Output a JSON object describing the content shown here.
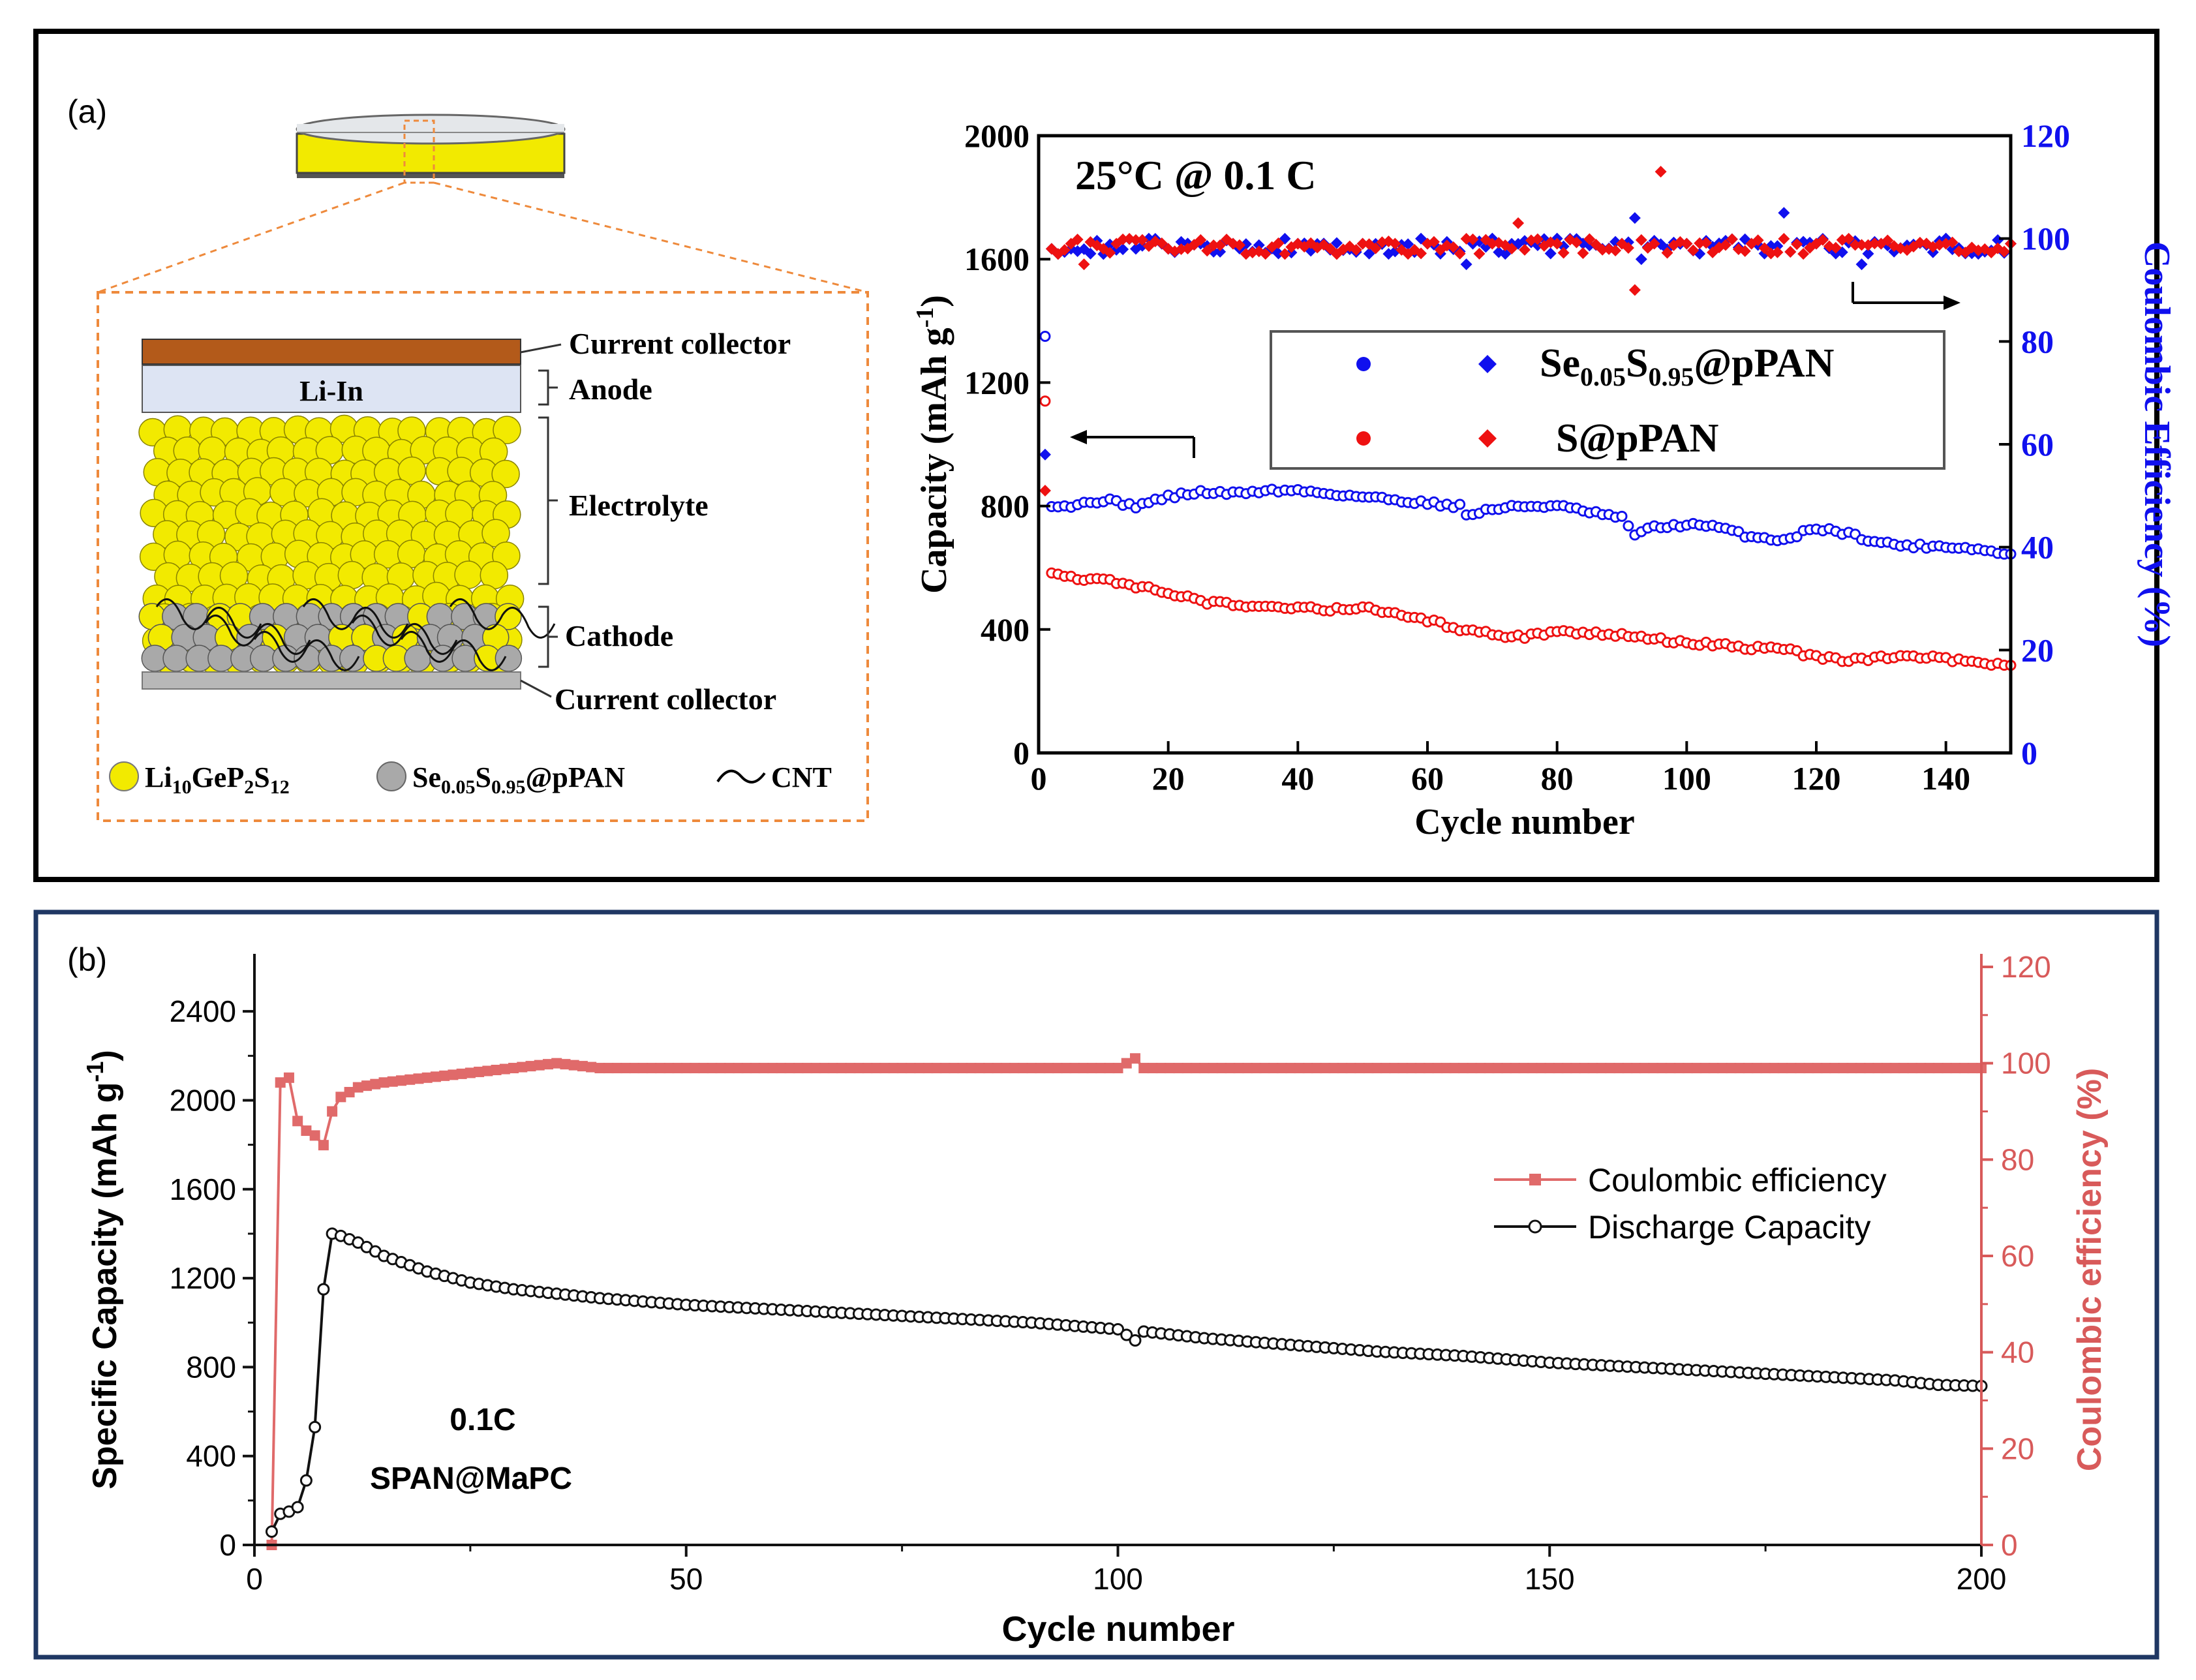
{
  "panel_a": {
    "label": "(a)",
    "schematic": {
      "callouts": [
        "Current collector",
        "Anode",
        "Electrolyte",
        "Cathode",
        "Current collector"
      ],
      "anode_text": "Li-In",
      "legend": {
        "lgps": {
          "base": "Li",
          "sub1": "10",
          "mid": "GeP",
          "sub2": "2",
          "tail": "S",
          "sub3": "12"
        },
        "sepan": {
          "base": "Se",
          "sub1": "0.05",
          "mid": "S",
          "sub2": "0.95",
          "tail": "@pPAN"
        },
        "cnt": "CNT"
      },
      "colors": {
        "electrolyte": "#f2ea00",
        "cathode_particle": "#a9a9a9",
        "collector_top": "#b35a1a",
        "anode": "#dde4f3",
        "collector_bottom": "#b8b8b8",
        "dash": "#ee8a3c"
      }
    },
    "chart": {
      "annotation": "25°C @ 0.1 C",
      "xlabel": "Cycle number",
      "ylabel_left": {
        "text": "Capacity (mAh g",
        "sup": "-1",
        "close": ")"
      },
      "ylabel_right": "Coulombic Efficiency (%)",
      "x_ticks": [
        "0",
        "20",
        "40",
        "60",
        "80",
        "100",
        "120",
        "140"
      ],
      "y_left_ticks": [
        "0",
        "400",
        "800",
        "1200",
        "1600",
        "2000"
      ],
      "y_right_ticks": [
        "0",
        "20",
        "40",
        "60",
        "80",
        "100",
        "120"
      ],
      "legend": [
        {
          "base": "Se",
          "sub1": "0.05",
          "mid": "S",
          "sub2": "0.95",
          "tail": "@pPAN",
          "color": "#1010ee"
        },
        {
          "base": "S@pPAN",
          "color": "#ee1111"
        }
      ]
    }
  },
  "panel_b": {
    "label": "(b)",
    "chart": {
      "annotation1": "0.1C",
      "annotation2": "SPAN@MaPC",
      "xlabel": "Cycle number",
      "ylabel_left": {
        "text": "Specific Capacity (mAh g",
        "sup": "-1",
        "close": ")"
      },
      "ylabel_right": "Coulombic efficiency (%)",
      "x_ticks": [
        "0",
        "50",
        "100",
        "150",
        "200"
      ],
      "y_left_ticks": [
        "0",
        "400",
        "800",
        "1200",
        "1600",
        "2000",
        "2400"
      ],
      "y_right_ticks": [
        "0",
        "20",
        "40",
        "60",
        "80",
        "100",
        "120"
      ],
      "legend": [
        {
          "label": "Coulombic efficiency",
          "color": "#e06a6a"
        },
        {
          "label": "Discharge Capacity",
          "color": "#111111"
        }
      ]
    }
  },
  "chart_data": [
    {
      "type": "scatter",
      "annotation": "25°C @ 0.1 C",
      "xlabel": "Cycle number",
      "ylabel": "Capacity (mAh g-1)",
      "y2label": "Coulombic Efficiency (%)",
      "xlim": [
        0,
        150
      ],
      "ylim": [
        0,
        2000
      ],
      "y2lim": [
        0,
        120
      ],
      "series": [
        {
          "name": "Se0.05S0.95@pPAN",
          "axis": "left",
          "color": "#1010ee",
          "x": [
            1,
            2,
            5,
            10,
            15,
            20,
            25,
            30,
            35,
            40,
            45,
            50,
            55,
            60,
            65,
            66,
            70,
            75,
            80,
            85,
            90,
            92,
            95,
            100,
            105,
            110,
            115,
            120,
            125,
            130,
            135,
            140,
            145,
            150
          ],
          "y": [
            1350,
            805,
            800,
            820,
            800,
            830,
            845,
            840,
            850,
            850,
            840,
            830,
            820,
            810,
            800,
            770,
            790,
            800,
            800,
            780,
            760,
            710,
            730,
            740,
            730,
            700,
            690,
            730,
            710,
            680,
            670,
            670,
            660,
            640
          ]
        },
        {
          "name": "S@pPAN",
          "axis": "left",
          "color": "#ee1111",
          "x": [
            1,
            2,
            5,
            10,
            15,
            20,
            25,
            30,
            35,
            40,
            45,
            50,
            55,
            60,
            65,
            70,
            75,
            80,
            85,
            90,
            95,
            100,
            105,
            110,
            115,
            120,
            125,
            130,
            135,
            140,
            145,
            150
          ],
          "y": [
            1140,
            590,
            570,
            560,
            540,
            520,
            490,
            480,
            475,
            470,
            465,
            470,
            450,
            430,
            400,
            385,
            375,
            395,
            390,
            380,
            370,
            355,
            350,
            340,
            335,
            310,
            300,
            310,
            310,
            305,
            290,
            290
          ]
        },
        {
          "name": "Se0.05S0.95@pPAN CE",
          "axis": "right",
          "color": "#1010ee",
          "x": [
            1,
            2,
            5,
            10,
            15,
            20,
            25,
            30,
            40,
            50,
            60,
            66,
            70,
            80,
            90,
            92,
            93,
            100,
            110,
            115,
            120,
            127,
            130,
            140,
            150
          ],
          "y": [
            58,
            98,
            98,
            97,
            98,
            98,
            99,
            99,
            99,
            99,
            99,
            95,
            100,
            100,
            99,
            104,
            96,
            99,
            99,
            105,
            99,
            95,
            99,
            100,
            99
          ]
        },
        {
          "name": "S@pPAN CE",
          "axis": "right",
          "color": "#ee1111",
          "x": [
            1,
            2,
            5,
            7,
            10,
            20,
            30,
            40,
            50,
            60,
            70,
            74,
            80,
            90,
            92,
            95,
            96,
            100,
            110,
            120,
            130,
            140,
            150
          ],
          "y": [
            51,
            98,
            99,
            95,
            98,
            98,
            99,
            99,
            99,
            99,
            99,
            103,
            99,
            99,
            90,
            99,
            113,
            99,
            99,
            99,
            99,
            99,
            99
          ]
        }
      ]
    },
    {
      "type": "line",
      "annotation": [
        "0.1C",
        "SPAN@MaPC"
      ],
      "xlabel": "Cycle number",
      "ylabel": "Specific Capacity (mAh g-1)",
      "y2label": "Coulombic efficiency (%)",
      "xlim": [
        0,
        200
      ],
      "ylim": [
        0,
        2600
      ],
      "y2lim": [
        0,
        120
      ],
      "series": [
        {
          "name": "Coulombic efficiency",
          "axis": "right",
          "color": "#e06a6a",
          "x": [
            2,
            3,
            4,
            5,
            6,
            7,
            8,
            9,
            10,
            12,
            15,
            20,
            25,
            30,
            35,
            40,
            50,
            60,
            70,
            80,
            90,
            100,
            102,
            103,
            110,
            120,
            130,
            140,
            150,
            160,
            170,
            180,
            190,
            195,
            199,
            200
          ],
          "y": [
            0,
            96,
            97,
            88,
            86,
            85,
            83,
            90,
            93,
            95,
            96,
            97,
            98,
            99,
            100,
            99,
            99,
            99,
            99,
            99,
            99,
            99,
            101,
            99,
            99,
            99,
            99,
            99,
            99,
            99,
            99,
            99,
            99,
            99,
            99,
            99
          ]
        },
        {
          "name": "Discharge Capacity",
          "axis": "left",
          "color": "#111111",
          "x": [
            2,
            3,
            4,
            5,
            6,
            7,
            8,
            9,
            10,
            12,
            15,
            20,
            25,
            30,
            35,
            40,
            50,
            60,
            70,
            80,
            90,
            100,
            102,
            103,
            110,
            120,
            130,
            140,
            150,
            160,
            170,
            180,
            190,
            195,
            200
          ],
          "y": [
            60,
            140,
            150,
            170,
            290,
            530,
            1150,
            1400,
            1390,
            1360,
            1300,
            1230,
            1180,
            1150,
            1130,
            1110,
            1080,
            1060,
            1040,
            1020,
            1000,
            970,
            920,
            960,
            930,
            900,
            870,
            850,
            820,
            800,
            780,
            760,
            740,
            720,
            715
          ]
        }
      ]
    }
  ]
}
